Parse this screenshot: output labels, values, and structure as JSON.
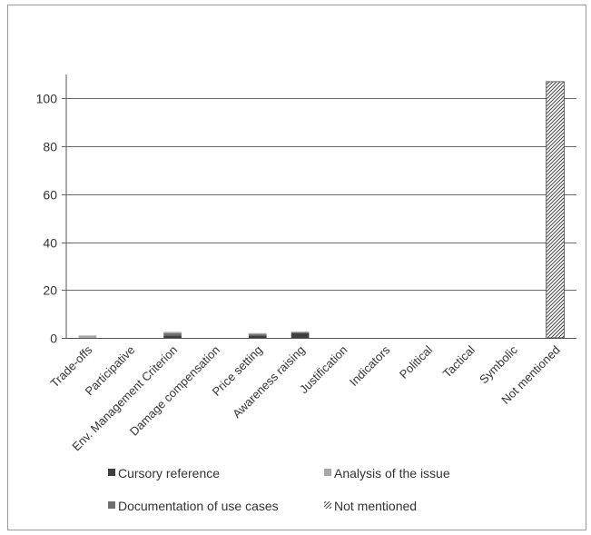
{
  "chart_data": {
    "type": "bar",
    "stacked": true,
    "title": "",
    "xlabel": "",
    "ylabel": "",
    "ylim": [
      0,
      110
    ],
    "yticks": [
      0,
      20,
      40,
      60,
      80,
      100
    ],
    "grid": true,
    "legend_position": "bottom",
    "categories": [
      "Trade-offs",
      "Participative",
      "Env. Management Criterion",
      "Damage compensation",
      "Price setting",
      "Awareness raising",
      "Justification",
      "Indicators",
      "Political",
      "Tactical",
      "Symbolic",
      "Not mentioned"
    ],
    "series": [
      {
        "name": "Cursory reference",
        "color": "#3f3f3f",
        "pattern": "solid",
        "values": [
          0,
          0,
          1,
          0,
          1,
          2,
          0,
          0,
          0,
          0,
          0,
          0
        ]
      },
      {
        "name": "Documentation of use cases",
        "color": "#6f6f6f",
        "pattern": "solid",
        "values": [
          0,
          0,
          1,
          0,
          0.5,
          0.5,
          0,
          0,
          0,
          0,
          0,
          0
        ]
      },
      {
        "name": "Analysis of the issue",
        "color": "#a6a6a6",
        "pattern": "solid",
        "values": [
          1,
          0,
          0.5,
          0,
          0.5,
          0,
          0,
          0,
          0,
          0,
          0,
          0
        ]
      },
      {
        "name": "Not mentioned",
        "color": "#555555",
        "pattern": "hatch",
        "values": [
          0,
          0,
          0,
          0,
          0,
          0,
          0,
          0,
          0,
          0,
          0,
          107
        ]
      }
    ]
  }
}
